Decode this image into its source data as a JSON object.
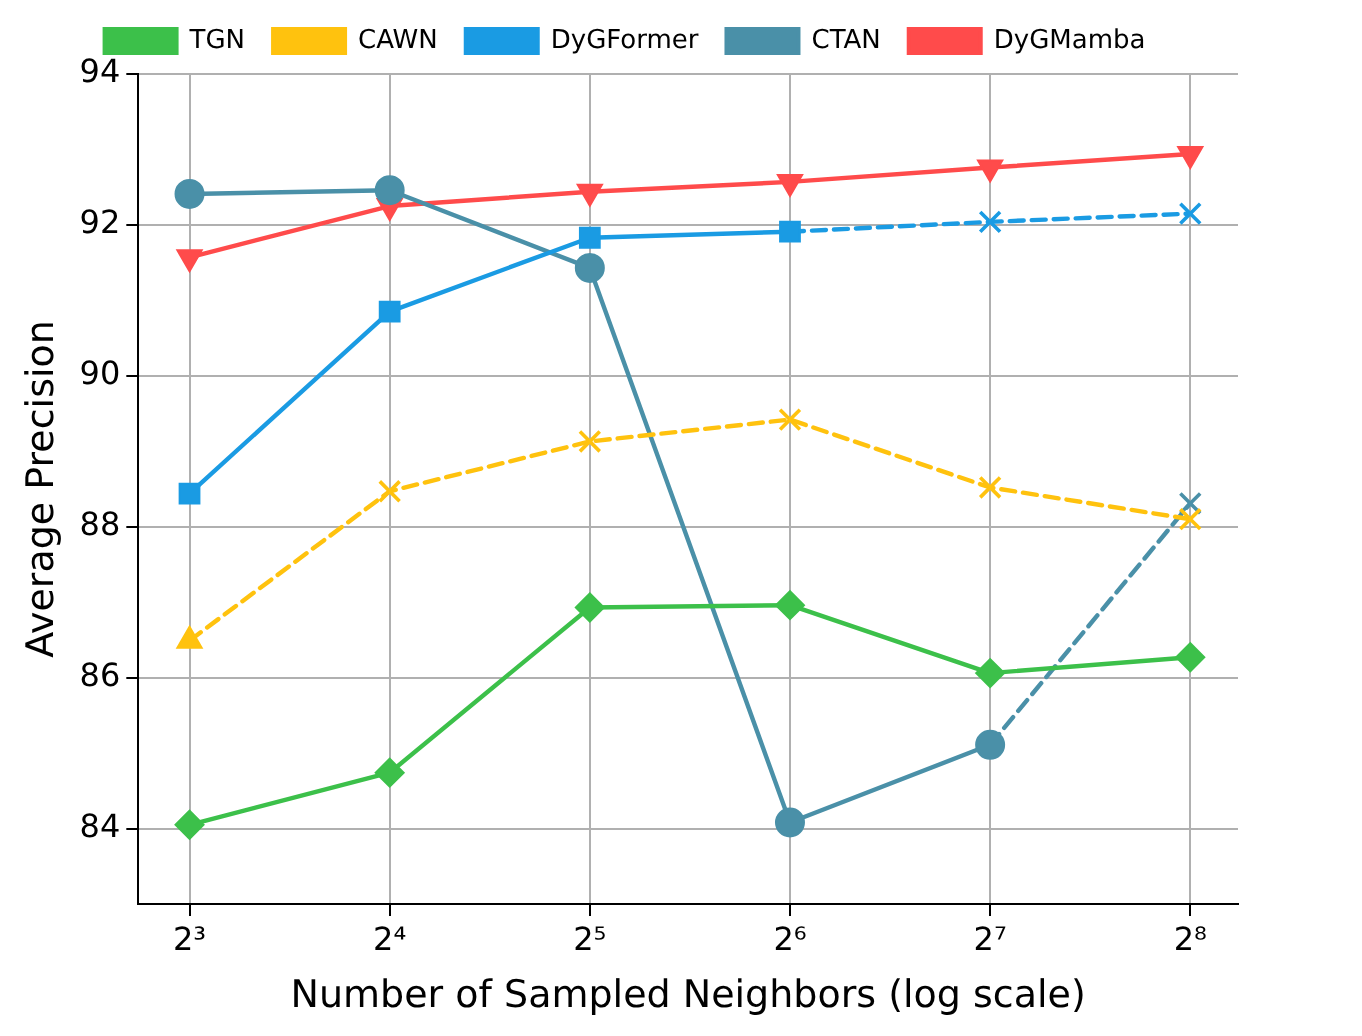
{
  "chart_data": {
    "type": "line",
    "xlabel": "Number of Sampled Neighbors (log scale)",
    "ylabel": "Average Precision",
    "x": [
      8,
      16,
      32,
      64,
      128,
      256
    ],
    "log": "x",
    "xlim": [
      6.7,
      302
    ],
    "xticks": [
      {
        "value": 8,
        "label": "2³"
      },
      {
        "value": 16,
        "label": "2⁴"
      },
      {
        "value": 32,
        "label": "2⁵"
      },
      {
        "value": 64,
        "label": "2⁶"
      },
      {
        "value": 128,
        "label": "2⁷"
      },
      {
        "value": 256,
        "label": "2⁸"
      }
    ],
    "ylim": [
      83,
      94
    ],
    "yticks": [
      84,
      86,
      88,
      90,
      92,
      94
    ],
    "grid": true,
    "legend": "top",
    "series": [
      {
        "name": "TGN",
        "color": "#3cc04a",
        "marker": "diamond",
        "line_style": "solid",
        "values": [
          84.05,
          84.74,
          86.93,
          86.96,
          86.06,
          86.27
        ]
      },
      {
        "name": "CAWN",
        "color": "#ffc20e",
        "marker": "triangle",
        "line_style": "solid",
        "values": [
          86.49,
          null,
          null,
          null,
          null,
          null
        ]
      },
      {
        "color": "#ffc20e",
        "marker": "cross",
        "line_style": "dashed",
        "values": [
          86.49,
          88.47,
          89.13,
          89.42,
          88.52,
          88.1
        ]
      },
      {
        "name": "DyGFormer",
        "color": "#1a9be3",
        "marker": "square",
        "line_style": "solid",
        "values": [
          88.44,
          90.85,
          91.83,
          91.91,
          null,
          null
        ]
      },
      {
        "color": "#1a9be3",
        "marker": "cross",
        "line_style": "dashed",
        "values": [
          null,
          null,
          null,
          91.91,
          92.04,
          92.15
        ]
      },
      {
        "name": "CTAN",
        "color": "#4a90a8",
        "marker": "circle",
        "line_style": "solid",
        "values": [
          92.41,
          92.46,
          91.43,
          84.08,
          85.11,
          null
        ]
      },
      {
        "color": "#4a90a8",
        "marker": "cross",
        "line_style": "dashed",
        "values": [
          null,
          null,
          null,
          null,
          85.11,
          88.31
        ]
      },
      {
        "name": "DyGMamba",
        "color": "#ff4b4b",
        "marker": "triangle_down",
        "line_style": "solid",
        "values": [
          91.57,
          92.25,
          92.44,
          92.57,
          92.76,
          92.94
        ]
      }
    ]
  }
}
